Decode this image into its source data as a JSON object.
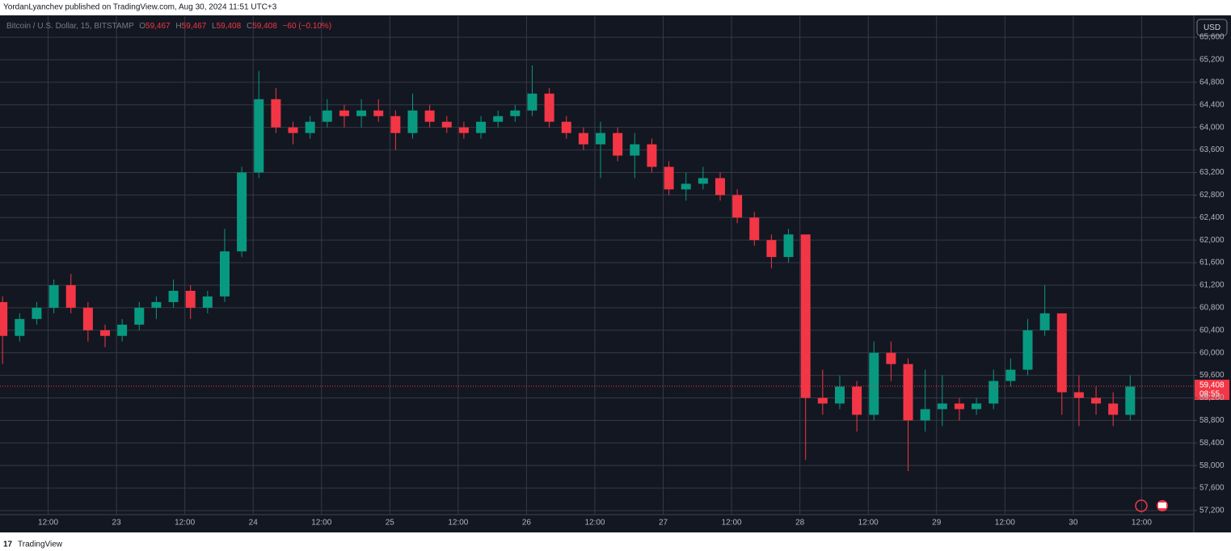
{
  "header": {
    "publisher": "YordanLyanchev published on TradingView.com, Aug 30, 2024 11:51 UTC+3",
    "brand": "TradingView"
  },
  "chart_data": {
    "type": "candlestick",
    "symbol": "Bitcoin / U.S. Dollar, 15, BITSTAMP",
    "ohlc": [
      {
        "label": "O",
        "value": "59,467"
      },
      {
        "label": "H",
        "value": "59,467"
      },
      {
        "label": "L",
        "value": "59,408"
      },
      {
        "label": "C",
        "value": "59,408"
      }
    ],
    "change": "−60 (−0.10%)",
    "currency": "USD",
    "up_color": "#089981",
    "down_color": "#f23645",
    "x": [
      "2024-08-22T04:00",
      "2024-08-22T07:00",
      "2024-08-22T10:00",
      "2024-08-22T13:00",
      "2024-08-22T16:00",
      "2024-08-22T19:00",
      "2024-08-22T22:00",
      "2024-08-23T01:00",
      "2024-08-23T04:00",
      "2024-08-23T07:00",
      "2024-08-23T10:00",
      "2024-08-23T13:00",
      "2024-08-23T16:00",
      "2024-08-23T19:00",
      "2024-08-23T22:00",
      "2024-08-24T01:00",
      "2024-08-24T04:00",
      "2024-08-24T07:00",
      "2024-08-24T10:00",
      "2024-08-24T13:00",
      "2024-08-24T16:00",
      "2024-08-24T19:00",
      "2024-08-24T22:00",
      "2024-08-25T01:00",
      "2024-08-25T04:00",
      "2024-08-25T07:00",
      "2024-08-25T10:00",
      "2024-08-25T13:00",
      "2024-08-25T16:00",
      "2024-08-25T19:00",
      "2024-08-25T22:00",
      "2024-08-26T01:00",
      "2024-08-26T04:00",
      "2024-08-26T07:00",
      "2024-08-26T10:00",
      "2024-08-26T13:00",
      "2024-08-26T16:00",
      "2024-08-26T19:00",
      "2024-08-26T22:00",
      "2024-08-27T01:00",
      "2024-08-27T04:00",
      "2024-08-27T07:00",
      "2024-08-27T10:00",
      "2024-08-27T13:00",
      "2024-08-27T16:00",
      "2024-08-27T19:00",
      "2024-08-27T22:00",
      "2024-08-28T01:00",
      "2024-08-28T04:00",
      "2024-08-28T07:00",
      "2024-08-28T10:00",
      "2024-08-28T13:00",
      "2024-08-28T16:00",
      "2024-08-28T19:00",
      "2024-08-28T22:00",
      "2024-08-29T01:00",
      "2024-08-29T04:00",
      "2024-08-29T07:00",
      "2024-08-29T10:00",
      "2024-08-29T13:00",
      "2024-08-29T16:00",
      "2024-08-29T19:00",
      "2024-08-29T22:00",
      "2024-08-30T01:00",
      "2024-08-30T04:00",
      "2024-08-30T07:00",
      "2024-08-30T10:00"
    ],
    "open": [
      60900,
      60300,
      60600,
      60800,
      61200,
      60800,
      60400,
      60300,
      60500,
      60800,
      60900,
      61100,
      60800,
      61000,
      61800,
      63200,
      64500,
      64000,
      63900,
      64100,
      64300,
      64200,
      64300,
      64200,
      63900,
      64300,
      64100,
      64000,
      63900,
      64100,
      64200,
      64300,
      64600,
      64100,
      63900,
      63700,
      63900,
      63500,
      63700,
      63300,
      62900,
      63000,
      63100,
      62800,
      62400,
      62000,
      61700,
      62100,
      59200,
      59100,
      59400,
      58900,
      60000,
      59800,
      58800,
      59000,
      59100,
      59000,
      59100,
      59500,
      59700,
      60400,
      60700,
      59300,
      59200,
      59100,
      58900
    ],
    "high": [
      61000,
      60700,
      60900,
      61300,
      61400,
      60900,
      60500,
      60600,
      60900,
      61000,
      61300,
      61200,
      61100,
      62200,
      63300,
      65000,
      64700,
      64100,
      64200,
      64500,
      64400,
      64500,
      64500,
      64300,
      64600,
      64400,
      64200,
      64100,
      64200,
      64300,
      64400,
      65100,
      64700,
      64200,
      64000,
      64100,
      64000,
      63900,
      63800,
      63400,
      63200,
      63300,
      63200,
      62900,
      62500,
      62100,
      62200,
      62100,
      59700,
      59600,
      59500,
      60200,
      60200,
      59900,
      59700,
      59600,
      59200,
      59200,
      59700,
      59900,
      60600,
      61200,
      60700,
      59600,
      59400,
      59300,
      59600
    ],
    "low": [
      59800,
      60200,
      60500,
      60700,
      60700,
      60200,
      60100,
      60200,
      60400,
      60600,
      60800,
      60600,
      60700,
      60900,
      61700,
      63100,
      63900,
      63700,
      63800,
      64000,
      64000,
      64000,
      64100,
      63600,
      63800,
      64000,
      63900,
      63800,
      63800,
      64000,
      64100,
      64200,
      64000,
      63800,
      63600,
      63100,
      63400,
      63100,
      63200,
      62800,
      62700,
      62900,
      62700,
      62300,
      61900,
      61500,
      61600,
      58100,
      58900,
      59000,
      58600,
      58800,
      59500,
      57900,
      58600,
      58700,
      58800,
      58900,
      59000,
      59400,
      59600,
      60300,
      58900,
      58700,
      58900,
      58700,
      58800
    ],
    "close": [
      60300,
      60600,
      60800,
      61200,
      60800,
      60400,
      60300,
      60500,
      60800,
      60900,
      61100,
      60800,
      61000,
      61800,
      63200,
      64500,
      64000,
      63900,
      64100,
      64300,
      64200,
      64300,
      64200,
      63900,
      64300,
      64100,
      64000,
      63900,
      64100,
      64200,
      64300,
      64600,
      64100,
      63900,
      63700,
      63900,
      63500,
      63700,
      63300,
      62900,
      63000,
      63100,
      62800,
      62400,
      62000,
      61700,
      62100,
      59200,
      59100,
      59400,
      58900,
      60000,
      59800,
      58800,
      59000,
      59100,
      59000,
      59100,
      59500,
      59700,
      60400,
      60700,
      59300,
      59200,
      59100,
      58900,
      59400
    ],
    "last_price": {
      "value": 59408,
      "label": "59,408"
    },
    "countdown": "08:55",
    "xlim": [
      "2024-08-22T03:33",
      "2024-08-30T21:10"
    ],
    "xticks": [
      {
        "value": "2024-08-22T12:00",
        "label": "12:00"
      },
      {
        "value": "2024-08-23T00:00",
        "label": "23"
      },
      {
        "value": "2024-08-23T12:00",
        "label": "12:00"
      },
      {
        "value": "2024-08-24T00:00",
        "label": "24"
      },
      {
        "value": "2024-08-24T12:00",
        "label": "12:00"
      },
      {
        "value": "2024-08-25T00:00",
        "label": "25"
      },
      {
        "value": "2024-08-25T12:00",
        "label": "12:00"
      },
      {
        "value": "2024-08-26T00:00",
        "label": "26"
      },
      {
        "value": "2024-08-26T12:00",
        "label": "12:00"
      },
      {
        "value": "2024-08-27T00:00",
        "label": "27"
      },
      {
        "value": "2024-08-27T12:00",
        "label": "12:00"
      },
      {
        "value": "2024-08-28T00:00",
        "label": "28"
      },
      {
        "value": "2024-08-28T12:00",
        "label": "12:00"
      },
      {
        "value": "2024-08-29T00:00",
        "label": "29"
      },
      {
        "value": "2024-08-29T12:00",
        "label": "12:00"
      },
      {
        "value": "2024-08-30T00:00",
        "label": "30"
      },
      {
        "value": "2024-08-30T12:00",
        "label": "12:00"
      }
    ],
    "ylim": [
      57128,
      65974
    ],
    "yticks": [
      {
        "value": 57200,
        "label": "57,200"
      },
      {
        "value": 57600,
        "label": "57,600"
      },
      {
        "value": 58000,
        "label": "58,000"
      },
      {
        "value": 58400,
        "label": "58,400"
      },
      {
        "value": 58800,
        "label": "58,800"
      },
      {
        "value": 59200,
        "label": "59,200"
      },
      {
        "value": 59600,
        "label": "59,600"
      },
      {
        "value": 60000,
        "label": "60,000"
      },
      {
        "value": 60400,
        "label": "60,400"
      },
      {
        "value": 60800,
        "label": "60,800"
      },
      {
        "value": 61200,
        "label": "61,200"
      },
      {
        "value": 61600,
        "label": "61,600"
      },
      {
        "value": 62000,
        "label": "62,000"
      },
      {
        "value": 62400,
        "label": "62,400"
      },
      {
        "value": 62800,
        "label": "62,800"
      },
      {
        "value": 63200,
        "label": "63,200"
      },
      {
        "value": 63600,
        "label": "63,600"
      },
      {
        "value": 64000,
        "label": "64,000"
      },
      {
        "value": 64400,
        "label": "64,400"
      },
      {
        "value": 64800,
        "label": "64,800"
      },
      {
        "value": 65200,
        "label": "65,200"
      },
      {
        "value": 65600,
        "label": "65,600"
      }
    ],
    "grid": true
  }
}
